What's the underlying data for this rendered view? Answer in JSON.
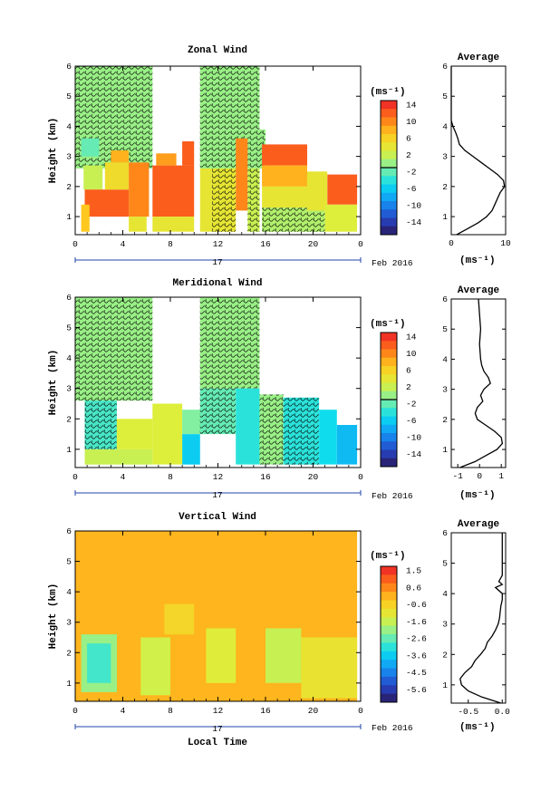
{
  "figure": {
    "xlabel": "Local Time",
    "date_label": "Feb 2016",
    "day_label": "17",
    "ylabel": "Height (km)",
    "unit_label": "(ms⁻¹)",
    "avg_title": "Average"
  },
  "chart_data": [
    {
      "type": "heatmap",
      "title": "Zonal Wind",
      "xlabel": "",
      "ylabel": "Height (km)",
      "x_ticks": [
        "0",
        "4",
        "8",
        "12",
        "16",
        "20",
        "0"
      ],
      "y_ticks": [
        "1",
        "2",
        "3",
        "4",
        "5",
        "6"
      ],
      "xlim": [
        0,
        24
      ],
      "ylim": [
        0.4,
        6.0
      ],
      "colorbar": {
        "unit": "(ms⁻¹)",
        "ticks": [
          "14",
          "10",
          "6",
          "2",
          "-2",
          "-6",
          "-10",
          "-14"
        ],
        "range": [
          -16,
          16
        ]
      },
      "fields": [
        {
          "x0": 0,
          "x1": 6.5,
          "y0": 3.9,
          "y1": 6.0,
          "v": 1,
          "h": true
        },
        {
          "x0": 10.5,
          "x1": 15.5,
          "y0": 3.9,
          "y1": 6.0,
          "v": 1,
          "h": true
        },
        {
          "x0": 0,
          "x1": 6.5,
          "y0": 2.6,
          "y1": 3.9,
          "v": 1,
          "h": true
        },
        {
          "x0": 10.5,
          "x1": 16,
          "y0": 2.6,
          "y1": 3.9,
          "v": 1,
          "h": true
        },
        {
          "x0": 0.5,
          "x1": 2,
          "y0": 3.0,
          "y1": 3.6,
          "v": -1
        },
        {
          "x0": 0.7,
          "x1": 2.3,
          "y0": 1.9,
          "y1": 2.7,
          "v": 3
        },
        {
          "x0": 0.8,
          "x1": 4.5,
          "y0": 1.0,
          "y1": 1.9,
          "v": 13
        },
        {
          "x0": 0.5,
          "x1": 1.2,
          "y0": 0.5,
          "y1": 1.4,
          "v": 8
        },
        {
          "x0": 2.5,
          "x1": 4.5,
          "y0": 1.9,
          "y1": 2.8,
          "v": 6
        },
        {
          "x0": 3.0,
          "x1": 4.5,
          "y0": 2.8,
          "y1": 3.2,
          "v": 9
        },
        {
          "x0": 4.5,
          "x1": 6.2,
          "y0": 1.0,
          "y1": 2.8,
          "v": 11
        },
        {
          "x0": 4.5,
          "x1": 6.0,
          "y0": 0.5,
          "y1": 1.0,
          "v": 5
        },
        {
          "x0": 6.5,
          "x1": 10.0,
          "y0": 1.0,
          "y1": 2.7,
          "v": 13
        },
        {
          "x0": 6.5,
          "x1": 10.0,
          "y0": 0.5,
          "y1": 1.0,
          "v": 5
        },
        {
          "x0": 6.8,
          "x1": 8.5,
          "y0": 2.7,
          "y1": 3.1,
          "v": 10
        },
        {
          "x0": 9.0,
          "x1": 10.0,
          "y0": 2.7,
          "y1": 3.5,
          "v": 13
        },
        {
          "x0": 10.5,
          "x1": 11.5,
          "y0": 0.5,
          "y1": 2.6,
          "v": 5
        },
        {
          "x0": 11.5,
          "x1": 13.5,
          "y0": 0.5,
          "y1": 2.6,
          "v": 5,
          "h": true
        },
        {
          "x0": 13.5,
          "x1": 14.5,
          "y0": 1.2,
          "y1": 3.6,
          "v": 11
        },
        {
          "x0": 14.5,
          "x1": 15.5,
          "y0": 0.5,
          "y1": 2.6,
          "v": 3,
          "h": true
        },
        {
          "x0": 15.7,
          "x1": 19.5,
          "y0": 2.7,
          "y1": 3.4,
          "v": 13
        },
        {
          "x0": 15.7,
          "x1": 19.5,
          "y0": 2.0,
          "y1": 2.7,
          "v": 9
        },
        {
          "x0": 15.7,
          "x1": 19.5,
          "y0": 1.3,
          "y1": 2.0,
          "v": 5
        },
        {
          "x0": 15.7,
          "x1": 21.0,
          "y0": 0.5,
          "y1": 1.3,
          "v": 2,
          "h": true
        },
        {
          "x0": 19.5,
          "x1": 21.2,
          "y0": 1.2,
          "y1": 2.5,
          "v": 5
        },
        {
          "x0": 21.2,
          "x1": 23.7,
          "y0": 1.4,
          "y1": 2.4,
          "v": 13
        },
        {
          "x0": 21.0,
          "x1": 23.7,
          "y0": 0.5,
          "y1": 1.4,
          "v": 4
        }
      ],
      "average": {
        "xlim": [
          0,
          10
        ],
        "x_ticks": [
          "0",
          "10"
        ],
        "x_tick_values": [
          0,
          10
        ],
        "y": [
          0.4,
          0.6,
          0.8,
          1.0,
          1.2,
          1.4,
          1.6,
          1.8,
          2.0,
          2.2,
          2.4,
          2.6,
          2.8,
          3.0,
          3.2,
          3.4,
          3.6,
          3.8,
          4.0,
          4.2,
          4.5,
          5.0,
          5.5,
          6.0
        ],
        "x": [
          1.0,
          3.0,
          5.0,
          6.5,
          7.5,
          8.0,
          8.5,
          9.0,
          9.8,
          9.6,
          8.5,
          7.0,
          5.5,
          4.0,
          2.5,
          1.5,
          1.2,
          0.8,
          0.3,
          -0.2,
          -0.4,
          -0.5,
          -0.3,
          -0.6
        ]
      }
    },
    {
      "type": "heatmap",
      "title": "Meridional Wind",
      "xlabel": "",
      "ylabel": "Height (km)",
      "x_ticks": [
        "0",
        "4",
        "8",
        "12",
        "16",
        "20",
        "0"
      ],
      "y_ticks": [
        "1",
        "2",
        "3",
        "4",
        "5",
        "6"
      ],
      "xlim": [
        0,
        24
      ],
      "ylim": [
        0.4,
        6.0
      ],
      "colorbar": {
        "unit": "(ms⁻¹)",
        "ticks": [
          "14",
          "10",
          "6",
          "2",
          "-2",
          "-6",
          "-10",
          "-14"
        ],
        "range": [
          -16,
          16
        ]
      },
      "fields": [
        {
          "x0": 0,
          "x1": 6.5,
          "y0": 2.6,
          "y1": 6.0,
          "v": 1,
          "h": true
        },
        {
          "x0": 10.5,
          "x1": 15.5,
          "y0": 3.0,
          "y1": 6.0,
          "v": 1,
          "h": true
        },
        {
          "x0": 0.8,
          "x1": 3.5,
          "y0": 1.0,
          "y1": 2.6,
          "v": -2,
          "h": true
        },
        {
          "x0": 0.8,
          "x1": 6.5,
          "y0": 0.5,
          "y1": 1.0,
          "v": 3
        },
        {
          "x0": 3.5,
          "x1": 6.5,
          "y0": 1.0,
          "y1": 2.0,
          "v": 4
        },
        {
          "x0": 6.5,
          "x1": 9.0,
          "y0": 0.5,
          "y1": 2.5,
          "v": 4
        },
        {
          "x0": 9.0,
          "x1": 10.5,
          "y0": 0.5,
          "y1": 1.5,
          "v": -5
        },
        {
          "x0": 9.0,
          "x1": 11.0,
          "y0": 1.5,
          "y1": 2.3,
          "v": 0
        },
        {
          "x0": 10.5,
          "x1": 13.5,
          "y0": 1.5,
          "y1": 3.0,
          "v": -1,
          "h": true
        },
        {
          "x0": 13.5,
          "x1": 15.5,
          "y0": 0.5,
          "y1": 3.0,
          "v": -3
        },
        {
          "x0": 15.5,
          "x1": 17.5,
          "y0": 0.5,
          "y1": 2.8,
          "v": 1,
          "h": true
        },
        {
          "x0": 17.5,
          "x1": 20.5,
          "y0": 0.5,
          "y1": 2.7,
          "v": -3,
          "h": true
        },
        {
          "x0": 20.5,
          "x1": 22.0,
          "y0": 0.5,
          "y1": 2.3,
          "v": -4
        },
        {
          "x0": 22.0,
          "x1": 23.7,
          "y0": 0.5,
          "y1": 1.8,
          "v": -6
        }
      ],
      "average": {
        "xlim": [
          -1.3,
          1.2
        ],
        "x_ticks": [
          "-1",
          "0",
          "1"
        ],
        "x_tick_values": [
          -1,
          0,
          1
        ],
        "y": [
          0.4,
          0.6,
          0.8,
          1.0,
          1.2,
          1.4,
          1.6,
          1.8,
          2.0,
          2.2,
          2.4,
          2.6,
          2.8,
          3.0,
          3.2,
          3.4,
          3.6,
          3.8,
          4.0,
          4.5,
          5.0,
          5.5,
          6.0
        ],
        "x": [
          -0.9,
          -0.2,
          0.3,
          0.8,
          1.05,
          1.0,
          0.7,
          0.3,
          -0.1,
          -0.2,
          -0.1,
          0.15,
          0.05,
          0.2,
          0.5,
          0.4,
          0.2,
          0.1,
          0.05,
          0.0,
          0.05,
          0.0,
          -0.05
        ]
      }
    },
    {
      "type": "heatmap",
      "title": "Vertical Wind",
      "xlabel": "Local Time",
      "ylabel": "Height (km)",
      "x_ticks": [
        "0",
        "4",
        "8",
        "12",
        "16",
        "20",
        "0"
      ],
      "y_ticks": [
        "1",
        "2",
        "3",
        "4",
        "5",
        "6"
      ],
      "xlim": [
        0,
        24
      ],
      "ylim": [
        0.4,
        6.0
      ],
      "colorbar": {
        "unit": "(ms⁻¹)",
        "ticks": [
          "1.5",
          "0.6",
          "-0.6",
          "-1.6",
          "-2.6",
          "-3.6",
          "-4.5",
          "-5.6"
        ],
        "range": [
          -6.1,
          2.0
        ]
      },
      "fields": [
        {
          "x0": 0,
          "x1": 23.7,
          "y0": 0.4,
          "y1": 6.0,
          "v": 0.2
        },
        {
          "x0": 0.5,
          "x1": 3.5,
          "y0": 0.7,
          "y1": 2.6,
          "v": -1.8
        },
        {
          "x0": 1.0,
          "x1": 3.0,
          "y0": 1.0,
          "y1": 2.3,
          "v": -2.6
        },
        {
          "x0": 5.5,
          "x1": 8.0,
          "y0": 0.6,
          "y1": 2.5,
          "v": -1.2
        },
        {
          "x0": 11.0,
          "x1": 13.5,
          "y0": 1.0,
          "y1": 2.8,
          "v": -1.0
        },
        {
          "x0": 16.0,
          "x1": 19.0,
          "y0": 1.0,
          "y1": 2.8,
          "v": -1.3
        },
        {
          "x0": 19.0,
          "x1": 23.7,
          "y0": 0.5,
          "y1": 2.5,
          "v": -0.7
        },
        {
          "x0": 7.5,
          "x1": 10.0,
          "y0": 2.6,
          "y1": 3.6,
          "v": -0.4
        }
      ],
      "average": {
        "xlim": [
          -0.75,
          0.05
        ],
        "x_ticks": [
          "-0.5",
          "0.0"
        ],
        "x_tick_values": [
          -0.5,
          0.0
        ],
        "y": [
          0.4,
          0.6,
          0.8,
          1.0,
          1.2,
          1.4,
          1.6,
          1.8,
          2.0,
          2.2,
          2.4,
          2.6,
          2.8,
          3.0,
          3.2,
          3.4,
          3.6,
          3.8,
          4.0,
          4.2,
          4.3,
          4.4,
          4.6,
          5.0,
          5.5,
          6.0
        ],
        "x": [
          -0.02,
          -0.3,
          -0.5,
          -0.6,
          -0.62,
          -0.55,
          -0.45,
          -0.4,
          -0.32,
          -0.25,
          -0.22,
          -0.15,
          -0.1,
          -0.06,
          -0.04,
          -0.03,
          -0.02,
          0.0,
          0.0,
          -0.1,
          0.0,
          -0.05,
          0.0,
          0.0,
          0.0,
          0.0
        ]
      }
    }
  ]
}
